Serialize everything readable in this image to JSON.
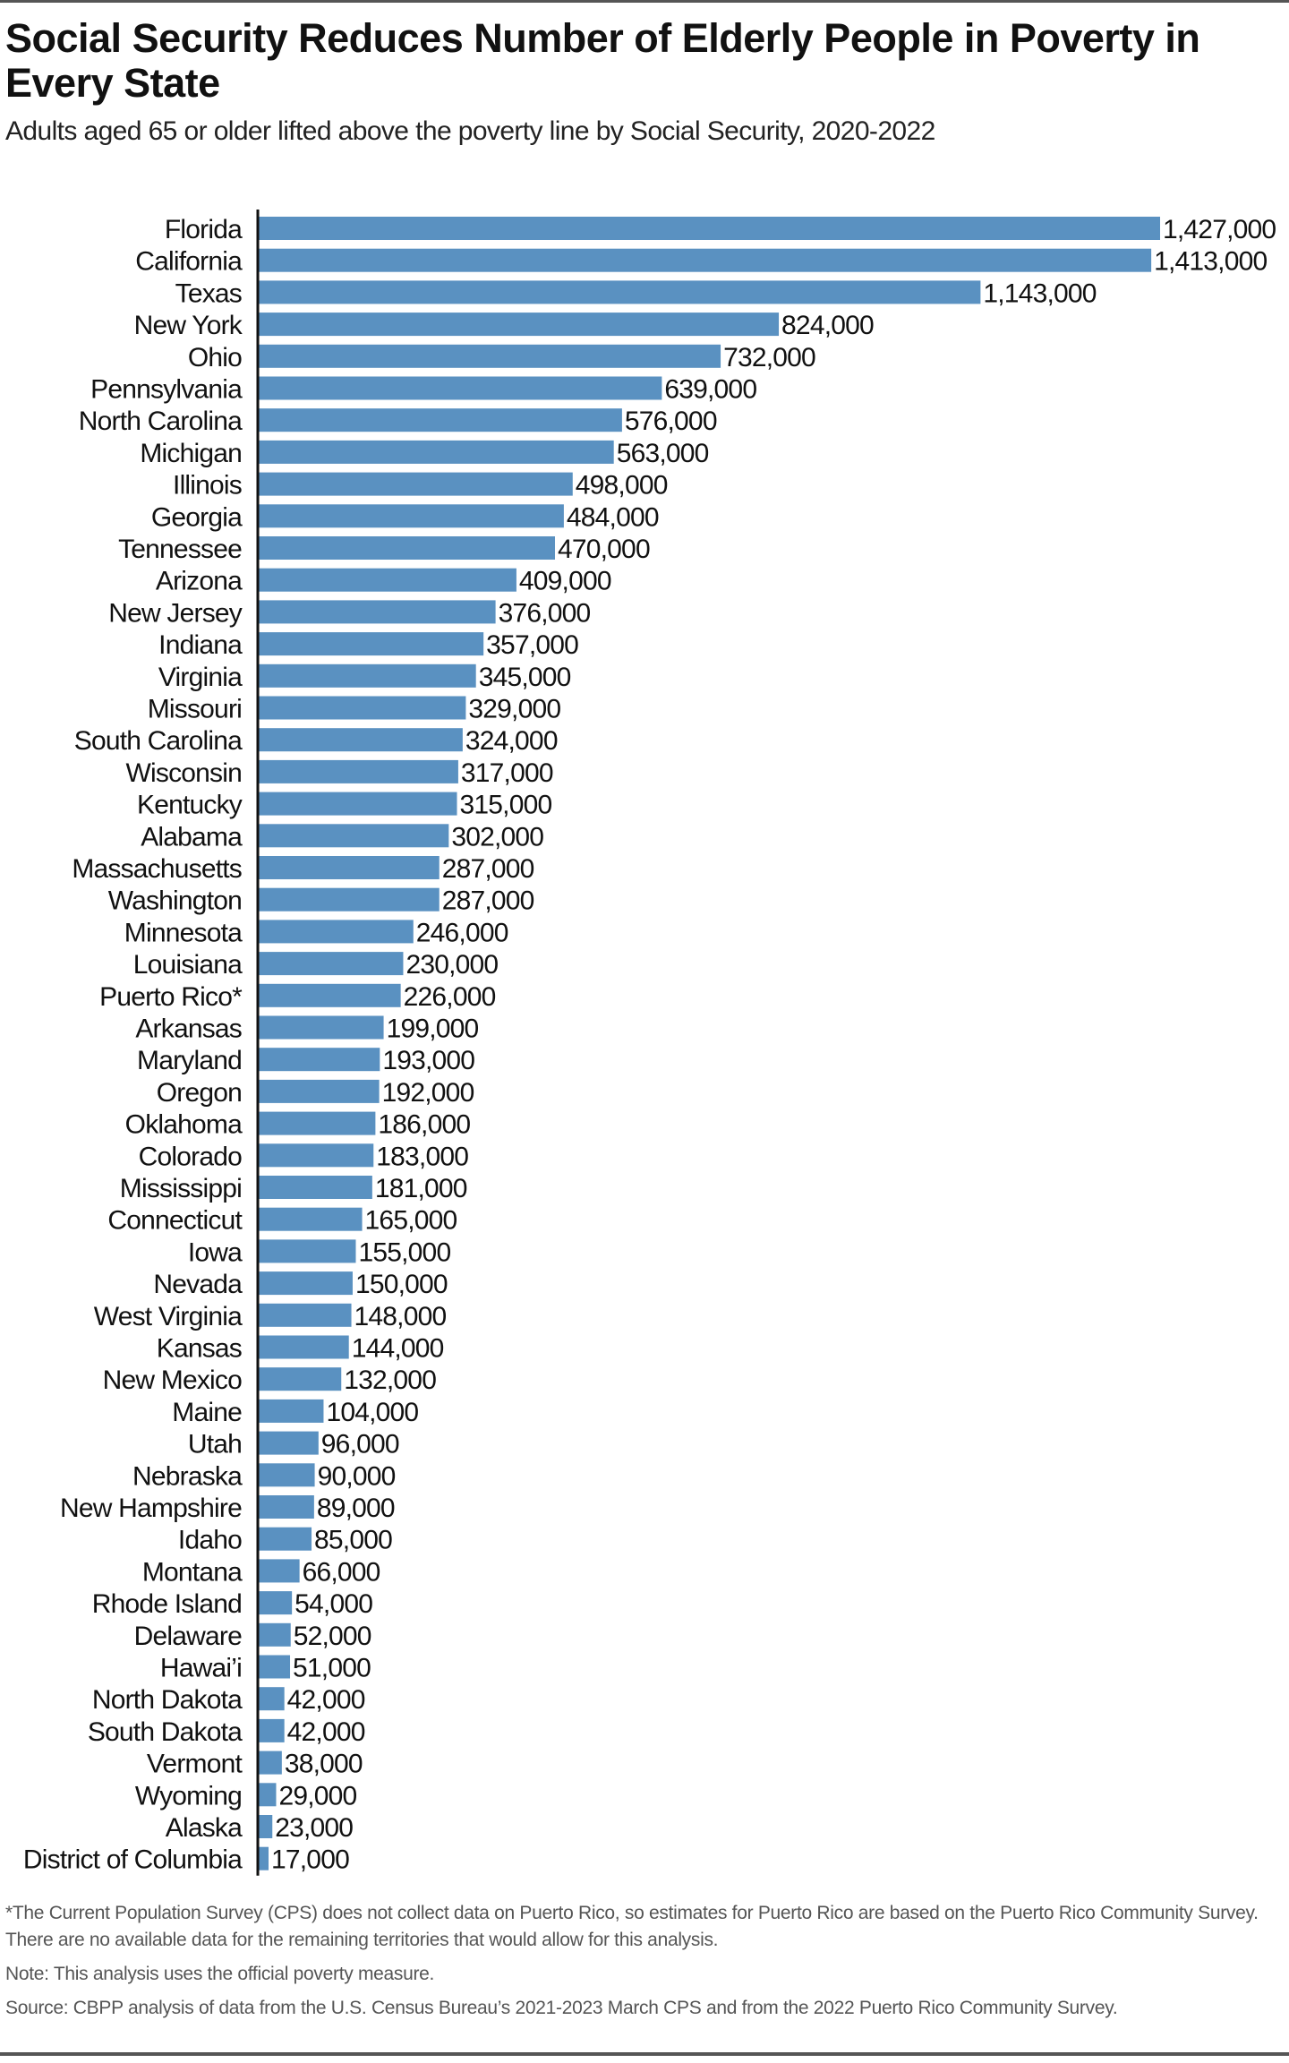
{
  "title": "Social Security Reduces Number of Elderly People in Poverty in Every State",
  "subtitle": "Adults aged 65 or older lifted above the poverty line by Social Security, 2020-2022",
  "footnotes": {
    "asterisk": "*The Current Population Survey (CPS) does not collect data on Puerto Rico, so estimates for Puerto Rico are based on the Puerto Rico Community Survey. There are no available data for the remaining territories that would allow for this analysis.",
    "note": "Note: This analysis uses the official poverty measure.",
    "source": "Source: CBPP analysis of data from the U.S. Census Bureau’s 2021-2023 March CPS and from the 2022 Puerto Rico Community Survey."
  },
  "colors": {
    "bar": "#5a91c1",
    "axis": "#111111"
  },
  "chart_data": {
    "type": "bar",
    "orientation": "horizontal",
    "title": "Social Security Reduces Number of Elderly People in Poverty in Every State",
    "xlabel": "",
    "ylabel": "",
    "xlim": [
      0,
      1427000
    ],
    "grid": false,
    "categories": [
      "Florida",
      "California",
      "Texas",
      "New York",
      "Ohio",
      "Pennsylvania",
      "North Carolina",
      "Michigan",
      "Illinois",
      "Georgia",
      "Tennessee",
      "Arizona",
      "New Jersey",
      "Indiana",
      "Virginia",
      "Missouri",
      "South Carolina",
      "Wisconsin",
      "Kentucky",
      "Alabama",
      "Massachusetts",
      "Washington",
      "Minnesota",
      "Louisiana",
      "Puerto Rico*",
      "Arkansas",
      "Maryland",
      "Oregon",
      "Oklahoma",
      "Colorado",
      "Mississippi",
      "Connecticut",
      "Iowa",
      "Nevada",
      "West Virginia",
      "Kansas",
      "New Mexico",
      "Maine",
      "Utah",
      "Nebraska",
      "New Hampshire",
      "Idaho",
      "Montana",
      "Rhode Island",
      "Delaware",
      "Hawai’i",
      "North Dakota",
      "South Dakota",
      "Vermont",
      "Wyoming",
      "Alaska",
      "District of Columbia"
    ],
    "values": [
      1427000,
      1413000,
      1143000,
      824000,
      732000,
      639000,
      576000,
      563000,
      498000,
      484000,
      470000,
      409000,
      376000,
      357000,
      345000,
      329000,
      324000,
      317000,
      315000,
      302000,
      287000,
      287000,
      246000,
      230000,
      226000,
      199000,
      193000,
      192000,
      186000,
      183000,
      181000,
      165000,
      155000,
      150000,
      148000,
      144000,
      132000,
      104000,
      96000,
      90000,
      89000,
      85000,
      66000,
      54000,
      52000,
      51000,
      42000,
      42000,
      38000,
      29000,
      23000,
      17000
    ]
  }
}
